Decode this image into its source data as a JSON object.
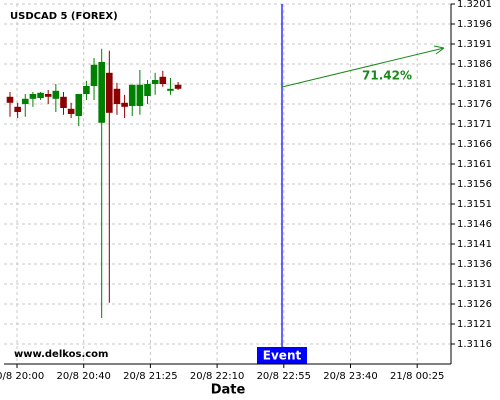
{
  "chart_data": {
    "type": "candlestick",
    "title": "USDCAD 5 (FOREX)",
    "x_label": "Date",
    "watermark": "www.delkos.com",
    "event_label": "Event",
    "annotation": "71.42%",
    "xticks": [
      "20/8 20:00",
      "20/8 20:40",
      "20/8 21:25",
      "20/8 22:10",
      "20/8 22:55",
      "20/8 23:40",
      "21/8 00:25"
    ],
    "ylim": [
      1.3111,
      1.3201
    ],
    "yticks": [
      1.3201,
      1.3196,
      1.3191,
      1.3186,
      1.3181,
      1.3176,
      1.3171,
      1.3166,
      1.3161,
      1.3156,
      1.3151,
      1.3146,
      1.3141,
      1.3136,
      1.3131,
      1.3126,
      1.3121,
      1.3116
    ],
    "grid": true,
    "up_color": "#008000",
    "down_color": "#8b0000",
    "event_color": "#0000ff",
    "arrow_color": "#1a8a1a",
    "open": [
      1.31778,
      1.31753,
      1.3176,
      1.31773,
      1.31775,
      1.31785,
      1.31773,
      1.31778,
      1.31748,
      1.3173,
      1.31785,
      1.31805,
      1.31713,
      1.31838,
      1.31798,
      1.31763,
      1.31755,
      1.31755,
      1.3178,
      1.3181,
      1.31828,
      1.31793,
      1.31808
    ],
    "high": [
      1.3179,
      1.31763,
      1.31785,
      1.3179,
      1.3179,
      1.31795,
      1.3181,
      1.3179,
      1.31763,
      1.31785,
      1.31818,
      1.31875,
      1.31898,
      1.31893,
      1.31813,
      1.31783,
      1.31808,
      1.31845,
      1.3182,
      1.31838,
      1.31843,
      1.31825,
      1.31815
    ],
    "low": [
      1.31728,
      1.31725,
      1.31728,
      1.31753,
      1.3177,
      1.3176,
      1.3174,
      1.31733,
      1.31725,
      1.31705,
      1.3177,
      1.3177,
      1.31225,
      1.31263,
      1.31733,
      1.31725,
      1.3173,
      1.31733,
      1.3176,
      1.31783,
      1.31803,
      1.31783,
      1.31795
    ],
    "close": [
      1.31763,
      1.3174,
      1.31773,
      1.31785,
      1.31788,
      1.31778,
      1.31793,
      1.3175,
      1.31735,
      1.31785,
      1.31805,
      1.31858,
      1.31865,
      1.31738,
      1.3176,
      1.31753,
      1.31808,
      1.31808,
      1.3181,
      1.3182,
      1.3181,
      1.31798,
      1.31798
    ]
  }
}
